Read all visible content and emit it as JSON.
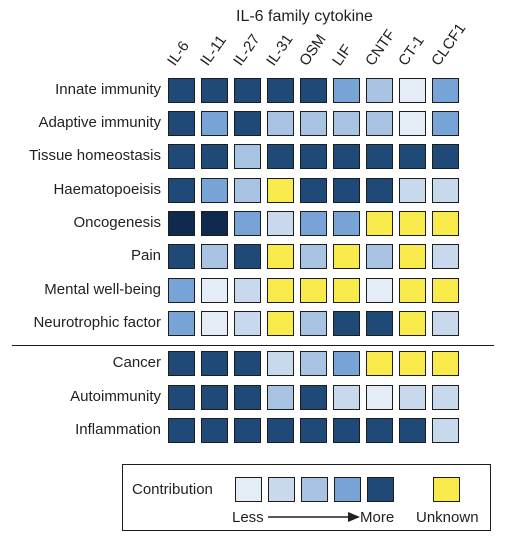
{
  "chart_data": {
    "type": "heatmap",
    "title": "IL-6 family cytokine",
    "columns": [
      "IL-6",
      "IL-11",
      "IL-27",
      "IL-31",
      "OSM",
      "LIF",
      "CNTF",
      "CT-1",
      "CLCF1"
    ],
    "rows": [
      "Innate immunity",
      "Adaptive immunity",
      "Tissue homeostasis",
      "Haematopoeisis",
      "Oncogenesis",
      "Pain",
      "Mental well-being",
      "Neurotrophic factor",
      "Cancer",
      "Autoimmunity",
      "Inflammation"
    ],
    "level_scale": "1 = least contribution, 5 = most contribution, 6 = darkest/strongest, 0 = unknown",
    "values": [
      [
        5,
        5,
        5,
        5,
        5,
        4,
        3,
        1,
        4
      ],
      [
        5,
        4,
        5,
        3,
        3,
        3,
        3,
        1,
        4
      ],
      [
        5,
        5,
        3,
        5,
        5,
        5,
        5,
        5,
        5
      ],
      [
        5,
        4,
        3,
        0,
        5,
        5,
        5,
        2,
        2
      ],
      [
        6,
        6,
        4,
        2,
        4,
        4,
        0,
        0,
        0
      ],
      [
        5,
        3,
        5,
        0,
        3,
        0,
        3,
        0,
        2
      ],
      [
        4,
        1,
        2,
        0,
        0,
        0,
        1,
        0,
        0
      ],
      [
        4,
        1,
        2,
        0,
        3,
        5,
        5,
        0,
        2
      ],
      [
        5,
        5,
        5,
        2,
        3,
        4,
        0,
        0,
        0
      ],
      [
        5,
        5,
        5,
        3,
        5,
        2,
        1,
        2,
        2
      ],
      [
        5,
        5,
        5,
        5,
        5,
        5,
        5,
        5,
        2
      ]
    ],
    "section_break_after_row": 8,
    "colors": {
      "0": "#f7ea4a",
      "1": "#e4ecf6",
      "2": "#c8d9ee",
      "3": "#a9c3e3",
      "4": "#77a3d6",
      "5": "#1f4a78",
      "6": "#0f2a4e"
    },
    "legend": {
      "title": "Contribution",
      "less_label": "Less",
      "more_label": "More",
      "unknown_label": "Unknown",
      "scale_levels": [
        1,
        2,
        3,
        4,
        5
      ]
    }
  }
}
